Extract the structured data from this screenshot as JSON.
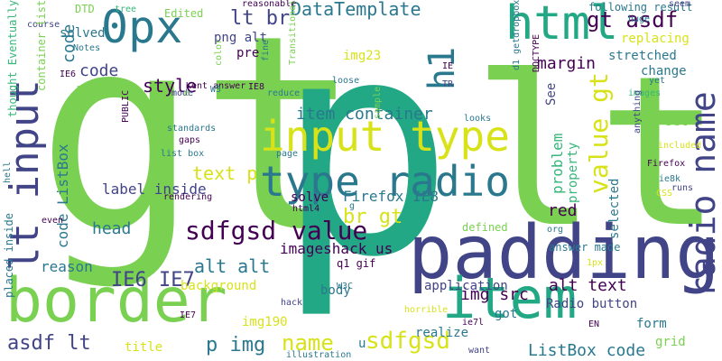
{
  "palette": {
    "green": "#7ad151",
    "teal": "#22a884",
    "dark_teal": "#2a788e",
    "blue": "#414487",
    "navy": "#440154",
    "yellow": "#d8e219",
    "mid": "#35b779"
  },
  "words": [
    {
      "text": "gt",
      "color": "#7ad151"
    },
    {
      "text": "p",
      "color": "#22a884"
    },
    {
      "text": "lt",
      "color": "#7ad151"
    },
    {
      "text": "padding",
      "color": "#414487"
    },
    {
      "text": "border",
      "color": "#7ad151"
    },
    {
      "text": "item",
      "color": "#22a884"
    },
    {
      "text": "0px",
      "color": "#2a788e"
    },
    {
      "text": "html",
      "color": "#22a884"
    },
    {
      "text": "input type",
      "color": "#d8e219"
    },
    {
      "text": "type radio",
      "color": "#2a788e"
    },
    {
      "text": "lt input",
      "color": "#414487"
    },
    {
      "text": "radio name",
      "color": "#414487"
    },
    {
      "text": "h1",
      "color": "#2a788e"
    },
    {
      "text": "sdfgsd value",
      "color": "#440154"
    },
    {
      "text": "value gt",
      "color": "#d8e219"
    },
    {
      "text": "gt asdf",
      "color": "#440154"
    },
    {
      "text": "lt br",
      "color": "#414487"
    },
    {
      "text": "DataTemplate",
      "color": "#2a788e"
    },
    {
      "text": "sdfgsd",
      "color": "#d8e219"
    },
    {
      "text": "name",
      "color": "#d8e219"
    },
    {
      "text": "asdf lt",
      "color": "#414487"
    },
    {
      "text": "p img",
      "color": "#2a788e"
    },
    {
      "text": "ListBox code",
      "color": "#2a788e"
    },
    {
      "text": "alt text",
      "color": "#440154"
    },
    {
      "text": "img src",
      "color": "#440154"
    },
    {
      "text": "code ListBox",
      "color": "#2a788e"
    },
    {
      "text": "item container",
      "color": "#2a788e"
    },
    {
      "text": "text p",
      "color": "#d8e219"
    },
    {
      "text": "style",
      "color": "#440154"
    },
    {
      "text": "code",
      "color": "#414487"
    },
    {
      "text": "IE6 IE7",
      "color": "#414487"
    },
    {
      "text": "alt alt",
      "color": "#2a788e"
    },
    {
      "text": "br gt",
      "color": "#d8e219"
    },
    {
      "text": "red",
      "color": "#440154"
    },
    {
      "text": "head",
      "color": "#2a788e"
    },
    {
      "text": "margin",
      "color": "#440154"
    },
    {
      "text": "reason",
      "color": "#2a788e"
    },
    {
      "text": "imageshack us",
      "color": "#440154"
    },
    {
      "text": "Firefox IE8",
      "color": "#2a788e"
    },
    {
      "text": "label inside",
      "color": "#414487"
    },
    {
      "text": "problem",
      "color": "#35b779"
    },
    {
      "text": "property",
      "color": "#35b779"
    },
    {
      "text": "selected",
      "color": "#2a788e"
    },
    {
      "text": "background",
      "color": "#d8e219"
    },
    {
      "text": "application",
      "color": "#414487"
    },
    {
      "text": "Radio button",
      "color": "#414487"
    },
    {
      "text": "body",
      "color": "#2a788e"
    },
    {
      "text": "form",
      "color": "#2a788e"
    },
    {
      "text": "grid",
      "color": "#7ad151"
    },
    {
      "text": "title",
      "color": "#d8e219"
    },
    {
      "text": "realize",
      "color": "#2a788e"
    },
    {
      "text": "got",
      "color": "#2a788e"
    },
    {
      "text": "img190",
      "color": "#d8e219"
    },
    {
      "text": "img23",
      "color": "#d8e219"
    },
    {
      "text": "marked",
      "color": "#7ad151"
    },
    {
      "text": "png alt",
      "color": "#414487"
    },
    {
      "text": "stretched",
      "color": "#2a788e"
    },
    {
      "text": "change",
      "color": "#2a788e"
    },
    {
      "text": "set",
      "color": "#7ad151"
    },
    {
      "text": "See",
      "color": "#414487"
    },
    {
      "text": "replacing",
      "color": "#d8e219"
    },
    {
      "text": "pre",
      "color": "#440154"
    },
    {
      "text": "solved",
      "color": "#2a788e"
    },
    {
      "text": "DTD",
      "color": "#7ad151"
    },
    {
      "text": "Edited",
      "color": "#7ad151"
    },
    {
      "text": "code",
      "color": "#2a788e"
    },
    {
      "text": "defined",
      "color": "#7ad151"
    },
    {
      "text": "solve",
      "color": "#440154"
    },
    {
      "text": "q1 gif",
      "color": "#440154"
    },
    {
      "text": "answer made",
      "color": "#2a788e"
    },
    {
      "text": "following result",
      "color": "#2a788e"
    },
    {
      "text": "huge",
      "color": "#2a788e"
    },
    {
      "text": "seem",
      "color": "#414487"
    },
    {
      "text": "reasonable",
      "color": "#440154"
    },
    {
      "text": "tree",
      "color": "#35b779"
    },
    {
      "text": "course",
      "color": "#414487"
    },
    {
      "text": "Notes",
      "color": "#2a788e"
    },
    {
      "text": "Kent answer",
      "color": "#440154"
    },
    {
      "text": "mode",
      "color": "#414487"
    },
    {
      "text": "W3",
      "color": "#2a788e"
    },
    {
      "text": "IE8",
      "color": "#440154"
    },
    {
      "text": "reduce",
      "color": "#2a788e"
    },
    {
      "text": "loose",
      "color": "#2a788e"
    },
    {
      "text": "IE",
      "color": "#440154"
    },
    {
      "text": "TR",
      "color": "#414487"
    },
    {
      "text": "yet",
      "color": "#2a788e"
    },
    {
      "text": "images",
      "color": "#35b779"
    },
    {
      "text": "looks",
      "color": "#2a788e"
    },
    {
      "text": "d1 getdropbox",
      "color": "#2a788e"
    },
    {
      "text": "DOCTYPE",
      "color": "#440154"
    },
    {
      "text": "standards",
      "color": "#2a788e"
    },
    {
      "text": "gaps",
      "color": "#440154"
    },
    {
      "text": "list box",
      "color": "#2a788e"
    },
    {
      "text": "PUBLIC",
      "color": "#440154"
    },
    {
      "text": "page",
      "color": "#2a788e"
    },
    {
      "text": "sample",
      "color": "#7ad151"
    },
    {
      "text": "included",
      "color": "#d8e219"
    },
    {
      "text": "Firefox",
      "color": "#440154"
    },
    {
      "text": "ie8k",
      "color": "#2a788e"
    },
    {
      "text": "runs",
      "color": "#414487"
    },
    {
      "text": "CSS",
      "color": "#d8e219"
    },
    {
      "text": "anything",
      "color": "#414487"
    },
    {
      "text": "rendering",
      "color": "#440154"
    },
    {
      "text": "html4",
      "color": "#440154"
    },
    {
      "text": "org",
      "color": "#2a788e"
    },
    {
      "text": "1px",
      "color": "#d8e219"
    },
    {
      "text": "W3C",
      "color": "#2a788e"
    },
    {
      "text": "hack",
      "color": "#414487"
    },
    {
      "text": "horrible",
      "color": "#d8e219"
    },
    {
      "text": "ie7l",
      "color": "#440154"
    },
    {
      "text": "EN",
      "color": "#440154"
    },
    {
      "text": "want",
      "color": "#414487"
    },
    {
      "text": "illustration",
      "color": "#2a788e"
    },
    {
      "text": "u",
      "color": "#2a788e"
    },
    {
      "text": "IE7",
      "color": "#440154"
    },
    {
      "text": "even",
      "color": "#440154"
    },
    {
      "text": "hell",
      "color": "#2a788e"
    },
    {
      "text": "placed inside",
      "color": "#2a788e"
    },
    {
      "text": "thought Eventually",
      "color": "#35b779"
    },
    {
      "text": "container list",
      "color": "#7ad151"
    },
    {
      "text": "IE6",
      "color": "#440154"
    },
    {
      "text": "Transitional",
      "color": "#7ad151"
    },
    {
      "text": "color",
      "color": "#7ad151"
    },
    {
      "text": "fine",
      "color": "#2a788e"
    },
    {
      "text": "e",
      "color": "#7ad151"
    },
    {
      "text": "g",
      "color": "#2a788e"
    }
  ]
}
